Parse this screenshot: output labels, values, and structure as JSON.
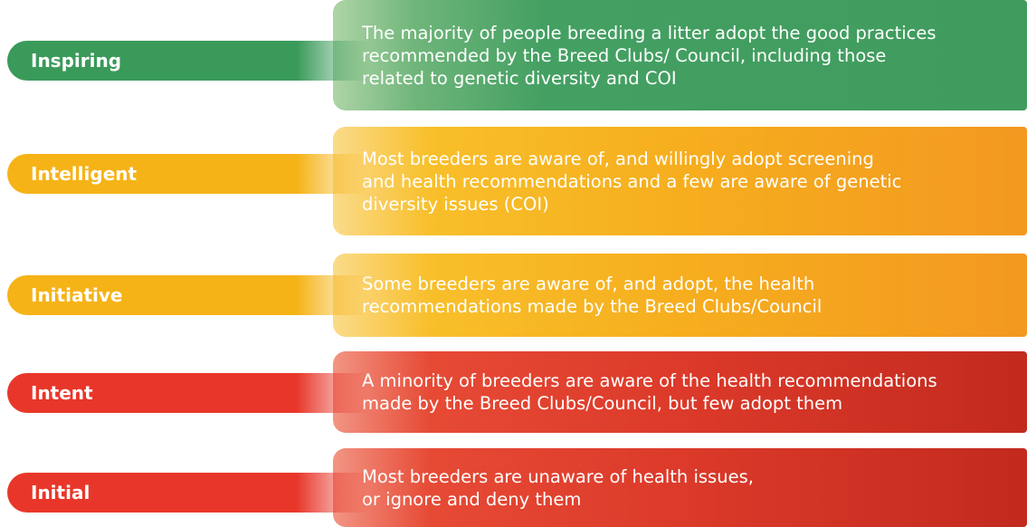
{
  "rows": [
    {
      "label": "Inspiring",
      "lines": [
        "The majority of people breeding a litter adopt the good practices",
        "recommended by the Breed Clubs/ Council, including those",
        "related to genetic diversity and COI"
      ]
    },
    {
      "label": "Intelligent",
      "lines": [
        "Most breeders are aware of, and willingly adopt screening",
        "and health recommendations and a few are aware of genetic",
        "diversity issues (COI)"
      ]
    },
    {
      "label": "Initiative",
      "lines": [
        "Some breeders are aware of, and adopt, the health",
        "recommendations made by the Breed Clubs/Council"
      ]
    },
    {
      "label": "Intent",
      "lines": [
        "A minority of breeders are aware of the health recommendations",
        "made by the Breed Clubs/Council, but few adopt them"
      ]
    },
    {
      "label": "Initial",
      "lines": [
        "Most breeders are unaware of health issues,",
        "or ignore and deny them"
      ]
    }
  ]
}
